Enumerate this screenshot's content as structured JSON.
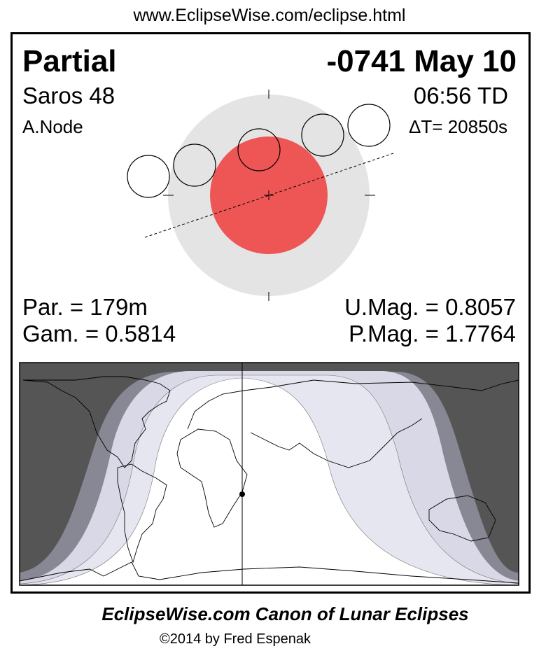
{
  "header": {
    "url": "www.EclipseWise.com/eclipse.html"
  },
  "eclipse": {
    "type": "Partial",
    "date": "-0741 May 10",
    "saros": "Saros  48",
    "time": "06:56 TD",
    "node": "A.Node",
    "delta_t": "ΔT=  20850s",
    "duration": "Par. = 179m",
    "gamma": "Gam. = 0.5814",
    "umbral_mag": "U.Mag. = 0.8057",
    "penumbral_mag": "P.Mag. = 1.7764"
  },
  "colors": {
    "penumbra": "#e4e4e4",
    "umbra": "#ee5555",
    "night": "#555555",
    "penumbral_band": "#888895",
    "partial_band": "#d8d8e6",
    "day": "#ffffff"
  },
  "footer": {
    "title": "EclipseWise.com Canon of Lunar Eclipses",
    "copyright": "©2014 by Fred Espenak"
  }
}
